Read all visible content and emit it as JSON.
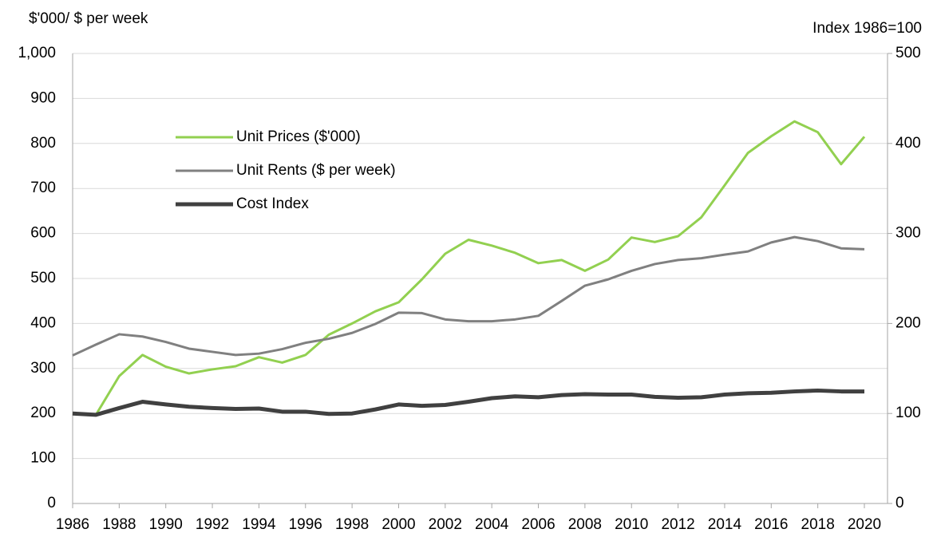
{
  "chart_data": {
    "type": "line",
    "y_label": "$'000/ $ per week",
    "y2_label": "Index 1986=100",
    "x": [
      1986,
      1987,
      1988,
      1989,
      1990,
      1991,
      1992,
      1993,
      1994,
      1995,
      1996,
      1997,
      1998,
      1999,
      2000,
      2001,
      2002,
      2003,
      2004,
      2005,
      2006,
      2007,
      2008,
      2009,
      2010,
      2011,
      2012,
      2013,
      2014,
      2015,
      2016,
      2017,
      2018,
      2019,
      2020
    ],
    "series": [
      {
        "name": "Unit Prices ($'000)",
        "color": "#92d050",
        "width": 3,
        "values": [
          200,
          197,
          283,
          330,
          304,
          289,
          298,
          305,
          325,
          313,
          330,
          375,
          400,
          427,
          447,
          498,
          555,
          586,
          573,
          557,
          534,
          541,
          517,
          542,
          591,
          581,
          594,
          636,
          707,
          779,
          816,
          849,
          825,
          754,
          815
        ]
      },
      {
        "name": "Unit Rents ($ per week)",
        "color": "#808080",
        "width": 3,
        "values": [
          329,
          353,
          376,
          371,
          359,
          344,
          337,
          330,
          333,
          343,
          357,
          366,
          379,
          399,
          424,
          423,
          409,
          405,
          405,
          409,
          417,
          450,
          484,
          498,
          517,
          532,
          541,
          545,
          553,
          560,
          580,
          592,
          583,
          567,
          565
        ]
      },
      {
        "name": "Cost Index",
        "color": "#404040",
        "width": 5,
        "axis": "y2",
        "values": [
          100,
          98.5,
          106,
          113,
          110,
          107.5,
          106,
          105,
          105.5,
          102,
          102,
          99.5,
          100,
          104.5,
          110,
          108.5,
          109.5,
          113,
          117,
          119,
          118,
          120.5,
          121.5,
          121,
          121,
          118.5,
          117.5,
          118,
          121,
          122.5,
          123,
          124.5,
          125.5,
          124.5,
          124.5
        ]
      }
    ],
    "xlim": [
      1986,
      2020
    ],
    "xticks": [
      1986,
      1988,
      1990,
      1992,
      1994,
      1996,
      1998,
      2000,
      2002,
      2004,
      2006,
      2008,
      2010,
      2012,
      2014,
      2016,
      2018,
      2020
    ],
    "ylim": [
      0,
      1000
    ],
    "yticks": [
      0,
      100,
      200,
      300,
      400,
      500,
      600,
      700,
      800,
      900,
      {
        "value": 1000,
        "label": "1,000"
      }
    ],
    "y2lim": [
      0,
      500
    ],
    "y2ticks": [
      0,
      100,
      200,
      300,
      400,
      500
    ],
    "grid": true
  }
}
